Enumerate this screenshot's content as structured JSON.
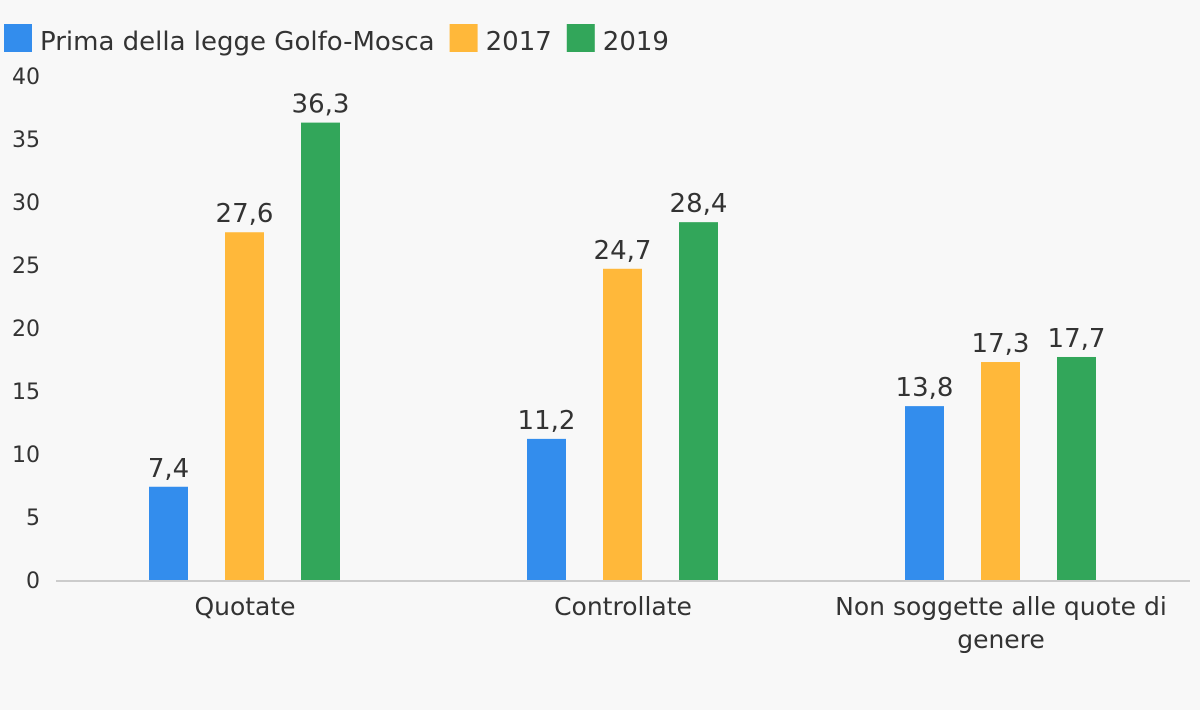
{
  "chart_data": {
    "type": "bar",
    "categories": [
      [
        "Quotate"
      ],
      [
        "Controllate"
      ],
      [
        "Non soggette alle quote di",
        "genere"
      ]
    ],
    "series": [
      {
        "name": "Prima della legge Golfo-Mosca",
        "color": "#338ded",
        "values": [
          7.4,
          11.2,
          13.8
        ],
        "labels": [
          "7,4",
          "11,2",
          "13,8"
        ]
      },
      {
        "name": "2017",
        "color": "#ffb83a",
        "values": [
          27.6,
          24.7,
          17.3
        ],
        "labels": [
          "27,6",
          "24,7",
          "17,3"
        ]
      },
      {
        "name": "2019",
        "color": "#32a65a",
        "values": [
          36.3,
          28.4,
          17.7
        ],
        "labels": [
          "36,3",
          "28,4",
          "17,7"
        ]
      }
    ],
    "ylim": [
      0,
      40
    ],
    "yticks": [
      "0",
      "5",
      "10",
      "15",
      "20",
      "25",
      "30",
      "35",
      "40"
    ],
    "grid": false,
    "legend_position": "top-left"
  }
}
